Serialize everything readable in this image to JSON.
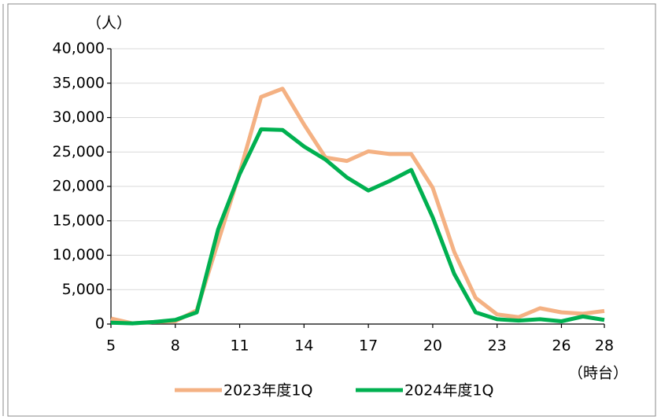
{
  "chart_data": {
    "type": "line",
    "y_label": "（人）",
    "x_label": "（時台）",
    "x": [
      5,
      6,
      7,
      8,
      9,
      10,
      11,
      12,
      13,
      14,
      15,
      16,
      17,
      18,
      19,
      20,
      21,
      22,
      23,
      24,
      25,
      26,
      27,
      28
    ],
    "xlim": [
      5,
      28
    ],
    "xticks": [
      5,
      8,
      11,
      14,
      17,
      20,
      23,
      26,
      28
    ],
    "ylim": [
      0,
      40000
    ],
    "yticks": [
      0,
      {
        "value": 5000,
        "label": "5,000"
      },
      {
        "value": 10000,
        "label": "10,000"
      },
      {
        "value": 15000,
        "label": "15,000"
      },
      {
        "value": 20000,
        "label": "20,000"
      },
      {
        "value": 25000,
        "label": "25,000"
      },
      {
        "value": 30000,
        "label": "30,000"
      },
      {
        "value": 35000,
        "label": "35,000"
      },
      {
        "value": 40000,
        "label": "40,000"
      }
    ],
    "grid": true,
    "legend": "bottom",
    "series": [
      {
        "name": "2023年度1Q",
        "color": "#f4b183",
        "values": [
          800,
          100,
          300,
          400,
          2000,
          12000,
          22000,
          33000,
          34200,
          29000,
          24200,
          23700,
          25100,
          24700,
          24700,
          19800,
          10500,
          3800,
          1400,
          1000,
          2300,
          1700,
          1500,
          1900
        ]
      },
      {
        "name": "2024年度1Q",
        "color": "#00b050",
        "values": [
          200,
          100,
          300,
          600,
          1700,
          13800,
          21800,
          28300,
          28200,
          25800,
          23900,
          21300,
          19400,
          20800,
          22400,
          15500,
          7300,
          1700,
          700,
          500,
          700,
          400,
          1100,
          600
        ]
      }
    ]
  }
}
